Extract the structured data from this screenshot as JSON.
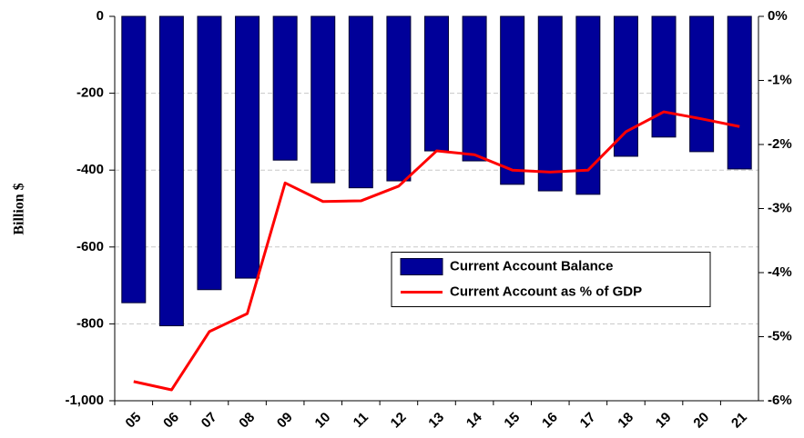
{
  "chart_data": {
    "type": "combo",
    "ylabel": "Billion $",
    "categories": [
      "05",
      "06",
      "07",
      "08",
      "09",
      "10",
      "11",
      "12",
      "13",
      "14",
      "15",
      "16",
      "17",
      "18",
      "19",
      "20",
      "21"
    ],
    "series": [
      {
        "name": "Current Account Balance",
        "type": "bar",
        "color": "#000099",
        "values": [
          -745,
          -805,
          -711,
          -681,
          -374,
          -433,
          -446,
          -428,
          -350,
          -376,
          -437,
          -454,
          -463,
          -364,
          -314,
          -352,
          -397
        ]
      },
      {
        "name": "Current Account as % of GDP",
        "type": "line",
        "color": "#ff0000",
        "axis": "y2",
        "values": [
          -5.7,
          -5.83,
          -4.92,
          -4.64,
          -2.6,
          -2.89,
          -2.88,
          -2.65,
          -2.1,
          -2.16,
          -2.4,
          -2.43,
          -2.4,
          -1.8,
          -1.49,
          -1.6,
          -1.72
        ]
      }
    ],
    "ylim": [
      -1000,
      0
    ],
    "yticks": [
      {
        "value": -1000,
        "label": "-1,000"
      },
      -800,
      -600,
      -400,
      -200,
      0
    ],
    "y2lim": [
      -6,
      0
    ],
    "y2ticks": [
      {
        "value": -6,
        "label": "-6%"
      },
      {
        "value": -5,
        "label": "-5%"
      },
      {
        "value": -4,
        "label": "-4%"
      },
      {
        "value": -3,
        "label": "-3%"
      },
      {
        "value": -2,
        "label": "-2%"
      },
      {
        "value": -1,
        "label": "-1%"
      },
      {
        "value": 0,
        "label": "0%"
      }
    ],
    "grid": true,
    "legend": "center-right"
  }
}
